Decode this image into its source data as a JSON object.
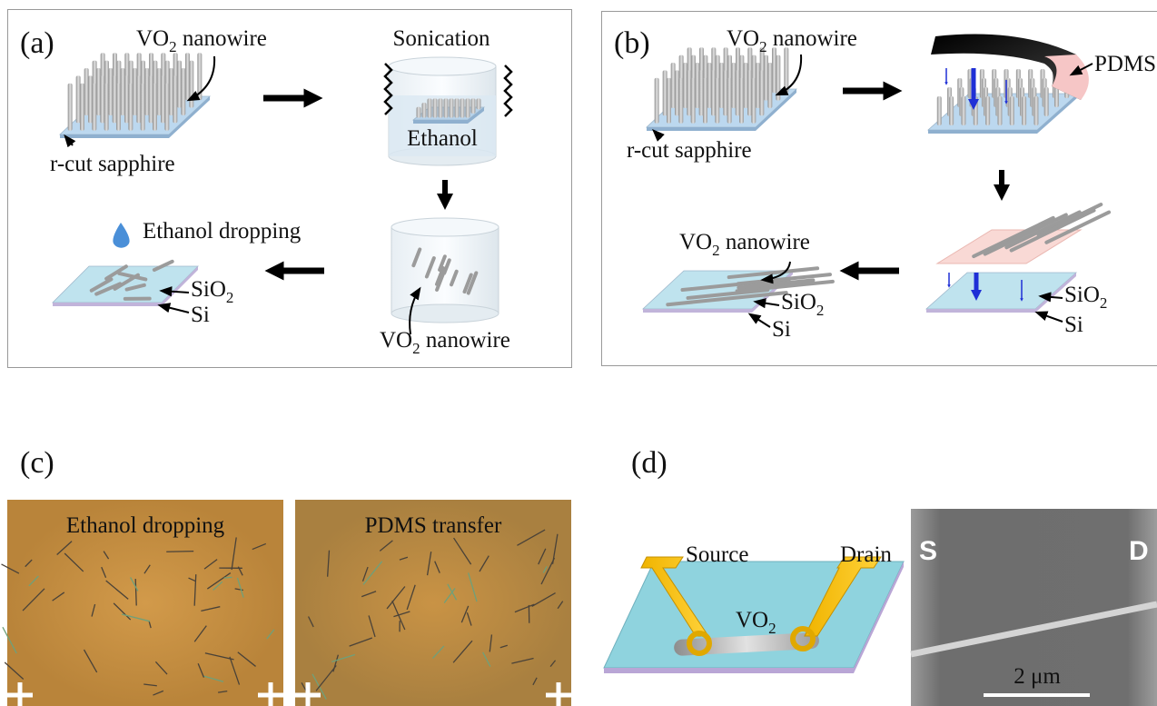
{
  "panel_a": {
    "label": "(a)",
    "nanowire_label": {
      "base": "VO",
      "sub": "2",
      "tail": " nanowire"
    },
    "substrate_label": "r-cut sapphire",
    "sonication_label": "Sonication",
    "solvent_label": "Ethanol",
    "dispersed_label": {
      "base": "VO",
      "sub": "2",
      "tail": " nanowire"
    },
    "dropping_label": "Ethanol dropping",
    "oxide_label": {
      "base": "SiO",
      "sub": "2"
    },
    "silicon_label": "Si"
  },
  "panel_b": {
    "label": "(b)",
    "nanowire_label": {
      "base": "VO",
      "sub": "2",
      "tail": " nanowire"
    },
    "stamp_label": "PDMS",
    "substrate_label": "r-cut sapphire",
    "transferred_label": {
      "base": "VO",
      "sub": "2",
      "tail": " nanowire"
    },
    "oxide_label_left": {
      "base": "SiO",
      "sub": "2"
    },
    "silicon_label_left": "Si",
    "oxide_label_right": {
      "base": "SiO",
      "sub": "2"
    },
    "silicon_label_right": "Si"
  },
  "panel_c": {
    "label": "(c)",
    "image_titles": [
      "Ethanol dropping",
      "PDMS transfer"
    ]
  },
  "panel_d": {
    "label": "(d)",
    "source_label": "Source",
    "drain_label": "Drain",
    "channel_label": {
      "base": "VO",
      "sub": "2"
    },
    "sem_source": "S",
    "sem_drain": "D",
    "scale_bar": "2 μm"
  }
}
